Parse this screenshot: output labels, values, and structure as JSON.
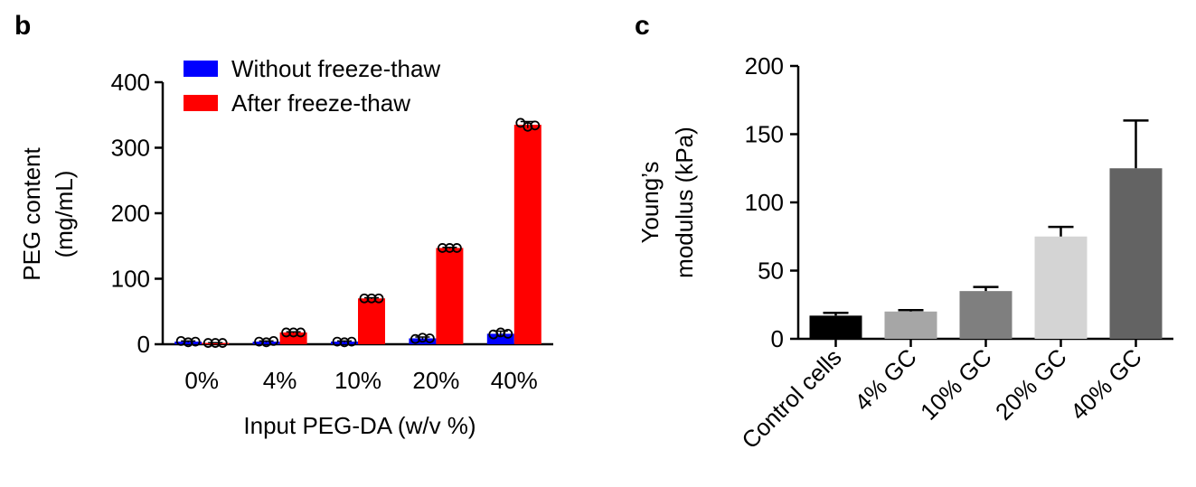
{
  "chart_data": [
    {
      "panel": "b",
      "type": "bar",
      "xlabel": "Input PEG-DA (w/v %)",
      "ylabel": [
        "PEG content",
        "(mg/mL)"
      ],
      "ylim": [
        0,
        400
      ],
      "yticks": [
        "0",
        "100",
        "200",
        "300",
        "400"
      ],
      "categories": [
        "0%",
        "4%",
        "10%",
        "20%",
        "40%"
      ],
      "legend_position": "top-left",
      "series": [
        {
          "name": "Without freeze-thaw",
          "color": "#0000ff",
          "values": [
            4,
            4,
            4,
            9,
            16
          ],
          "errors": [
            1,
            1,
            1,
            2,
            4
          ],
          "points": [
            [
              5,
              3,
              4
            ],
            [
              4,
              3,
              5
            ],
            [
              4,
              3,
              4
            ],
            [
              8,
              10,
              9
            ],
            [
              15,
              18,
              16
            ]
          ]
        },
        {
          "name": "After freeze-thaw",
          "color": "#ff0000",
          "values": [
            2,
            18,
            70,
            147,
            335
          ],
          "errors": [
            0.5,
            1,
            1,
            1,
            5
          ],
          "points": [
            [
              2,
              2,
              2
            ],
            [
              18,
              18,
              18
            ],
            [
              70,
              70,
              70
            ],
            [
              147,
              147,
              147
            ],
            [
              338,
              332,
              334
            ]
          ]
        }
      ]
    },
    {
      "panel": "c",
      "type": "bar",
      "xlabel": "",
      "ylabel": [
        "Young’s",
        "modulus (kPa)"
      ],
      "ylim": [
        0,
        200
      ],
      "yticks": [
        "0",
        "50",
        "100",
        "150",
        "200"
      ],
      "categories": [
        "Control cells",
        "4% GC",
        "10% GC",
        "20% GC",
        "40% GC"
      ],
      "values": [
        17,
        20,
        35,
        75,
        125
      ],
      "errors": [
        2,
        1,
        3,
        7,
        35
      ],
      "colors": [
        "#000000",
        "#a6a6a6",
        "#7f7f7f",
        "#d4d4d4",
        "#636363"
      ]
    }
  ]
}
